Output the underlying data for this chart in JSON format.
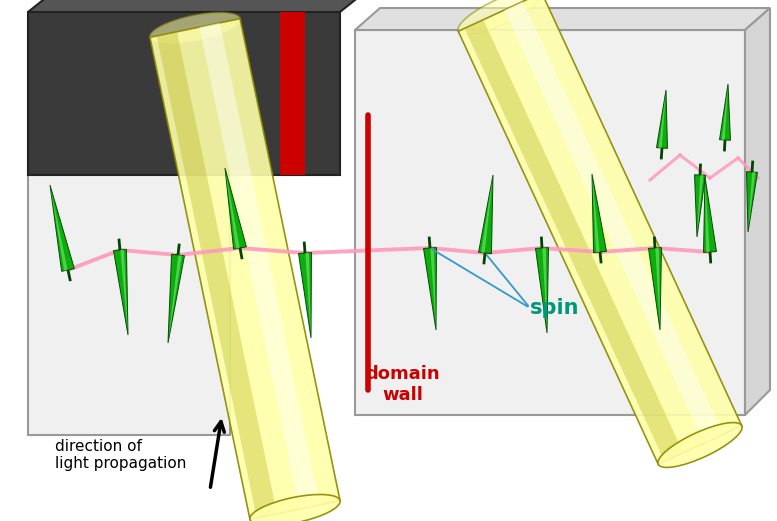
{
  "bg_color": "#ffffff",
  "label_direction": "direction of\nlight propagation",
  "label_spin": "spin",
  "label_domain": "domain\nwall",
  "label_direction_color": "#000000",
  "label_spin_color": "#009977",
  "label_domain_color": "#cc0000",
  "dark_panel_color": "#3a3a3a",
  "dark_panel_top_color": "#555555",
  "beam_color": "#ffffaa",
  "beam_highlight": "#ffffff",
  "beam_shadow": "#cccc44",
  "beam_edge": "#888800",
  "spin_color": "#00aa00",
  "spin_highlight": "#66ff66",
  "spin_edge": "#004400",
  "chain_color": "#ff99bb",
  "domain_wall_color": "#cc0000",
  "annotation_color": "#3399cc",
  "panel_face": "#f0f0f0",
  "panel_top": "#e0e0e0",
  "panel_side": "#d5d5d5",
  "panel_edge": "#999999"
}
